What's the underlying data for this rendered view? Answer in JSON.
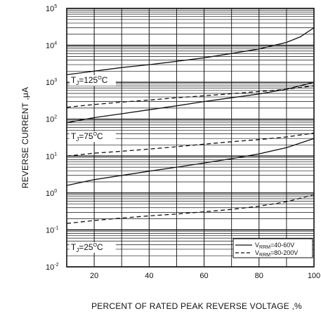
{
  "chart_data": {
    "type": "line",
    "xlabel": "PERCENT OF RATED PEAK REVERSE VOLTAGE ,%",
    "ylabel": "REVERSE CURRENT ,μA",
    "xlim": [
      10,
      100
    ],
    "ylim": [
      0.01,
      100000
    ],
    "y_scale": "log",
    "x_ticks": [
      20,
      40,
      60,
      80,
      100
    ],
    "y_ticks": [
      {
        "value": 0.01,
        "base": "10",
        "exp": "-2"
      },
      {
        "value": 0.1,
        "base": "10",
        "exp": "-1"
      },
      {
        "value": 1,
        "base": "10",
        "exp": "0"
      },
      {
        "value": 10,
        "base": "10",
        "exp": "1"
      },
      {
        "value": 100,
        "base": "10",
        "exp": "2"
      },
      {
        "value": 1000,
        "base": "10",
        "exp": "3"
      },
      {
        "value": 10000,
        "base": "10",
        "exp": "4"
      },
      {
        "value": 100000,
        "base": "10",
        "exp": "5"
      }
    ],
    "grid": true,
    "annotations": [
      {
        "text": "TJ=125°C",
        "parts": [
          "T",
          "J",
          "=125",
          "O",
          "C"
        ],
        "x": 11.5,
        "y": 1000
      },
      {
        "text": "TJ=75°C",
        "parts": [
          "T",
          "J",
          "=75",
          "O",
          "C"
        ],
        "x": 11.5,
        "y": 30
      },
      {
        "text": "TJ=25°C",
        "parts": [
          "T",
          "J",
          "=25",
          "O",
          "C"
        ],
        "x": 11.5,
        "y": 0.03
      }
    ],
    "legend": {
      "position": "bottom-right",
      "entries": [
        {
          "style": "solid",
          "label_prefix": "V",
          "label_sub": "RRM",
          "label_rest": "=40-60V"
        },
        {
          "style": "dashed",
          "label_prefix": "V",
          "label_sub": "RRM",
          "label_rest": "=80-200V"
        }
      ]
    },
    "series": [
      {
        "style": "solid",
        "group": "125",
        "x": [
          10,
          20,
          30,
          40,
          50,
          60,
          70,
          80,
          90,
          95,
          100
        ],
        "y": [
          1600,
          2000,
          2500,
          3000,
          3700,
          4600,
          6000,
          8000,
          12000,
          17000,
          30000
        ]
      },
      {
        "style": "dashed",
        "group": "125",
        "x": [
          10,
          20,
          30,
          40,
          50,
          60,
          70,
          80,
          90,
          100
        ],
        "y": [
          210,
          250,
          290,
          330,
          380,
          430,
          490,
          560,
          650,
          800
        ]
      },
      {
        "style": "solid",
        "group": "75",
        "x": [
          10,
          20,
          30,
          40,
          50,
          60,
          70,
          80,
          90,
          100
        ],
        "y": [
          80,
          110,
          140,
          180,
          230,
          300,
          380,
          480,
          650,
          1000
        ]
      },
      {
        "style": "dashed",
        "group": "75",
        "x": [
          10,
          20,
          30,
          40,
          50,
          60,
          70,
          80,
          90,
          100
        ],
        "y": [
          10,
          12,
          13.5,
          15.5,
          18,
          21,
          24.5,
          28,
          33,
          42
        ]
      },
      {
        "style": "solid",
        "group": "25",
        "x": [
          10,
          20,
          30,
          40,
          50,
          60,
          70,
          80,
          90,
          100
        ],
        "y": [
          1.6,
          2.3,
          3.0,
          3.9,
          5.0,
          6.5,
          8.5,
          11.5,
          17,
          30
        ]
      },
      {
        "style": "dashed",
        "group": "25",
        "x": [
          10,
          20,
          30,
          40,
          50,
          60,
          70,
          80,
          90,
          100
        ],
        "y": [
          0.15,
          0.18,
          0.21,
          0.24,
          0.27,
          0.31,
          0.36,
          0.44,
          0.58,
          0.9
        ]
      }
    ]
  }
}
